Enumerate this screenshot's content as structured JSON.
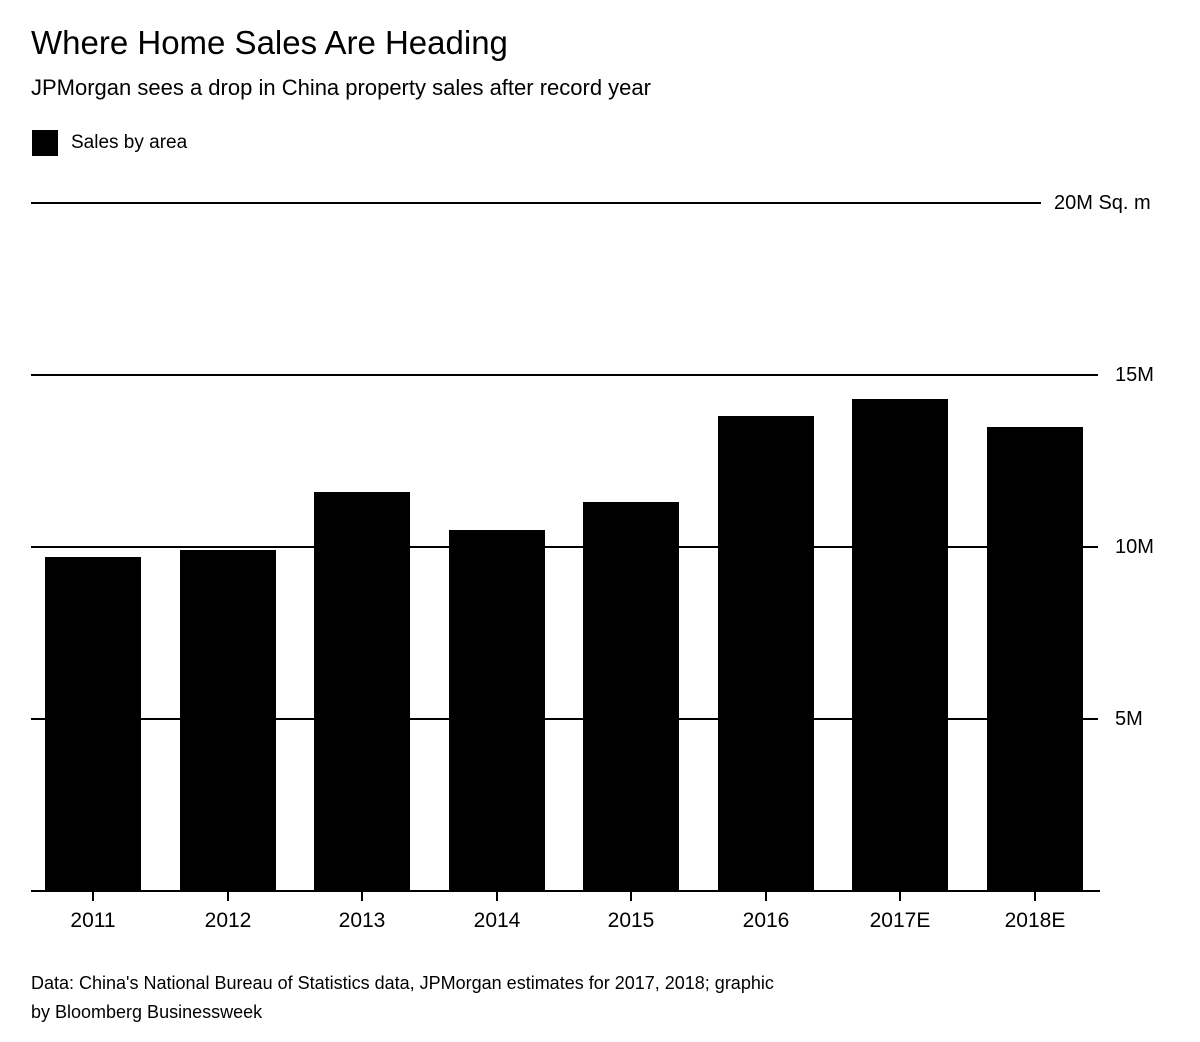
{
  "header": {
    "title": "Where Home Sales Are Heading",
    "subtitle": "JPMorgan sees a drop in China property sales after record year"
  },
  "legend": {
    "label": "Sales by area",
    "swatch_color": "#000000"
  },
  "chart_data": {
    "type": "bar",
    "title": "Where Home Sales Are Heading",
    "subtitle": "JPMorgan sees a drop in China property sales after record year",
    "categories": [
      "2011",
      "2012",
      "2013",
      "2014",
      "2015",
      "2016",
      "2017E",
      "2018E"
    ],
    "series": [
      {
        "name": "Sales by area",
        "values": [
          9.7,
          9.9,
          11.6,
          10.5,
          11.3,
          13.8,
          14.3,
          13.5
        ]
      }
    ],
    "unit": "M Sq. m",
    "ylim": [
      0,
      20
    ],
    "yticks": [
      {
        "value": 20,
        "label": "20M Sq. m"
      },
      {
        "value": 15,
        "label": "15M"
      },
      {
        "value": 10,
        "label": "10M"
      },
      {
        "value": 5,
        "label": "5M"
      }
    ],
    "bar_color": "#000000",
    "background_color": "#ffffff",
    "grid": true,
    "gridline_color": "#000000",
    "legend_position": "top-left",
    "xlabel": "",
    "ylabel": ""
  },
  "footer": {
    "lines": [
      "Data: China's National Bureau of Statistics data, JPMorgan estimates for 2017, 2018; graphic",
      "by Bloomberg Businessweek"
    ]
  }
}
